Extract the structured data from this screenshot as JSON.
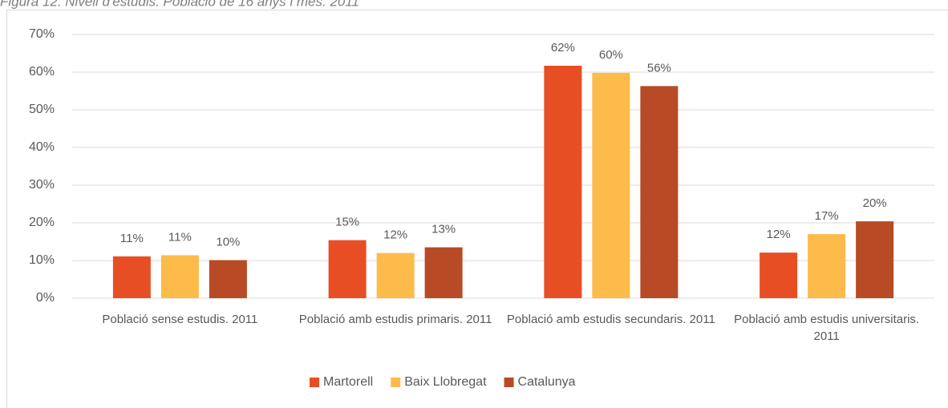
{
  "chart_data": {
    "type": "bar",
    "title": "Figura 12. Nivell d'estudis. Població de 16 anys i més. 2011",
    "categories": [
      "Població sense estudis. 2011",
      "Població amb estudis primaris. 2011",
      "Població amb estudis secundaris. 2011",
      "Població amb estudis universitaris. 2011"
    ],
    "series": [
      {
        "name": "Martorell",
        "color": "#e84e24",
        "values": [
          11.1,
          15.4,
          61.7,
          12.1
        ],
        "value_labels": [
          "11%",
          "15%",
          "62%",
          "12%"
        ]
      },
      {
        "name": "Baix Llobregat",
        "color": "#fdbb4a",
        "values": [
          11.4,
          12.0,
          59.8,
          17.0
        ],
        "value_labels": [
          "11%",
          "12%",
          "60%",
          "17%"
        ]
      },
      {
        "name": "Catalunya",
        "color": "#b94a26",
        "values": [
          10.1,
          13.5,
          56.3,
          20.4
        ],
        "value_labels": [
          "10%",
          "13%",
          "56%",
          "20%"
        ]
      }
    ],
    "ylim": [
      0,
      70
    ],
    "yticks": [
      {
        "value": 0,
        "label": "0%"
      },
      {
        "value": 10,
        "label": "10%"
      },
      {
        "value": 20,
        "label": "20%"
      },
      {
        "value": 30,
        "label": "30%"
      },
      {
        "value": 40,
        "label": "40%"
      },
      {
        "value": 50,
        "label": "50%"
      },
      {
        "value": 60,
        "label": "60%"
      },
      {
        "value": 70,
        "label": "70%"
      }
    ],
    "grid": true,
    "legend": "bottom"
  }
}
